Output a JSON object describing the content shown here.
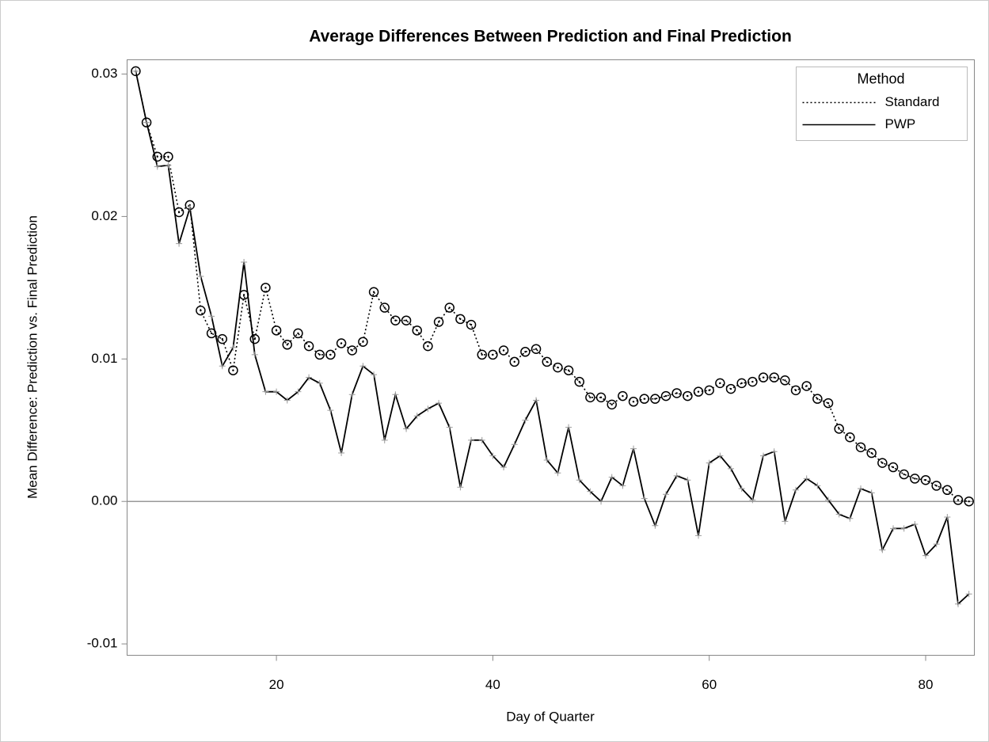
{
  "chart_data": {
    "type": "line",
    "title": "Average Differences Between Prediction and Final Prediction",
    "x_label": "Day of Quarter",
    "y_label": "Mean Difference: Prediction vs. Final Prediction",
    "legend_title": "Method",
    "legend": "top-right",
    "x": [
      7,
      8,
      9,
      10,
      11,
      12,
      13,
      14,
      15,
      16,
      17,
      18,
      19,
      20,
      21,
      22,
      23,
      24,
      25,
      26,
      27,
      28,
      29,
      30,
      31,
      32,
      33,
      34,
      35,
      36,
      37,
      38,
      39,
      40,
      41,
      42,
      43,
      44,
      45,
      46,
      47,
      48,
      49,
      50,
      51,
      52,
      53,
      54,
      55,
      56,
      57,
      58,
      59,
      60,
      61,
      62,
      63,
      64,
      65,
      66,
      67,
      68,
      69,
      70,
      71,
      72,
      73,
      74,
      75,
      76,
      77,
      78,
      79,
      80,
      81,
      82,
      83,
      84
    ],
    "series": [
      {
        "name": "Standard",
        "color": "#000000",
        "line_style": "dotted",
        "marker": "circle",
        "values": [
          0.0302,
          0.0266,
          0.0242,
          0.0242,
          0.0203,
          0.0208,
          0.0134,
          0.0118,
          0.0114,
          0.0092,
          0.0145,
          0.0114,
          0.015,
          0.012,
          0.011,
          0.0118,
          0.0109,
          0.0103,
          0.0103,
          0.0111,
          0.0106,
          0.0112,
          0.0147,
          0.0136,
          0.0127,
          0.0127,
          0.012,
          0.0109,
          0.0126,
          0.0136,
          0.0128,
          0.0124,
          0.0103,
          0.0103,
          0.0106,
          0.0098,
          0.0105,
          0.0107,
          0.0098,
          0.0094,
          0.0092,
          0.0084,
          0.0073,
          0.0073,
          0.0068,
          0.0074,
          0.007,
          0.0072,
          0.0072,
          0.0074,
          0.0076,
          0.0074,
          0.0077,
          0.0078,
          0.0083,
          0.0079,
          0.0083,
          0.0084,
          0.0087,
          0.0087,
          0.0085,
          0.0078,
          0.0081,
          0.0072,
          0.0069,
          0.0051,
          0.0045,
          0.0038,
          0.0034,
          0.0027,
          0.0024,
          0.0019,
          0.0016,
          0.0015,
          0.0011,
          0.0008,
          0.0001,
          0.0
        ]
      },
      {
        "name": "PWP",
        "color": "#000000",
        "line_style": "solid",
        "marker": "plus",
        "values": [
          0.0302,
          0.0266,
          0.0235,
          0.0236,
          0.0181,
          0.0206,
          0.0158,
          0.013,
          0.0095,
          0.0108,
          0.0168,
          0.0103,
          0.0077,
          0.0077,
          0.0071,
          0.0077,
          0.0087,
          0.0083,
          0.0064,
          0.0034,
          0.0075,
          0.0095,
          0.0089,
          0.0043,
          0.0075,
          0.0051,
          0.006,
          0.0065,
          0.0069,
          0.0052,
          0.001,
          0.0043,
          0.0043,
          0.0032,
          0.0024,
          0.004,
          0.0057,
          0.0071,
          0.0029,
          0.002,
          0.0052,
          0.0015,
          0.0007,
          0.0,
          0.0017,
          0.0011,
          0.0037,
          0.0002,
          -0.0017,
          0.0005,
          0.0018,
          0.0015,
          -0.0024,
          0.0027,
          0.0032,
          0.0023,
          0.0009,
          0.0001,
          0.0032,
          0.0035,
          -0.0014,
          0.0008,
          0.0016,
          0.0011,
          0.0001,
          -0.0009,
          -0.0012,
          0.0009,
          0.0006,
          -0.0034,
          -0.0019,
          -0.0019,
          -0.0016,
          -0.0038,
          -0.003,
          -0.0011,
          -0.0072,
          -0.0065
        ]
      }
    ],
    "reference_line": 0,
    "xlim": [
      6.2,
      84.5
    ],
    "ylim": [
      -0.0108,
      0.031
    ],
    "xticks": [
      20,
      40,
      60,
      80
    ],
    "yticks": [
      -0.01,
      {
        "value": 0,
        "label": "0.00"
      },
      0.01,
      0.02,
      0.03
    ]
  }
}
